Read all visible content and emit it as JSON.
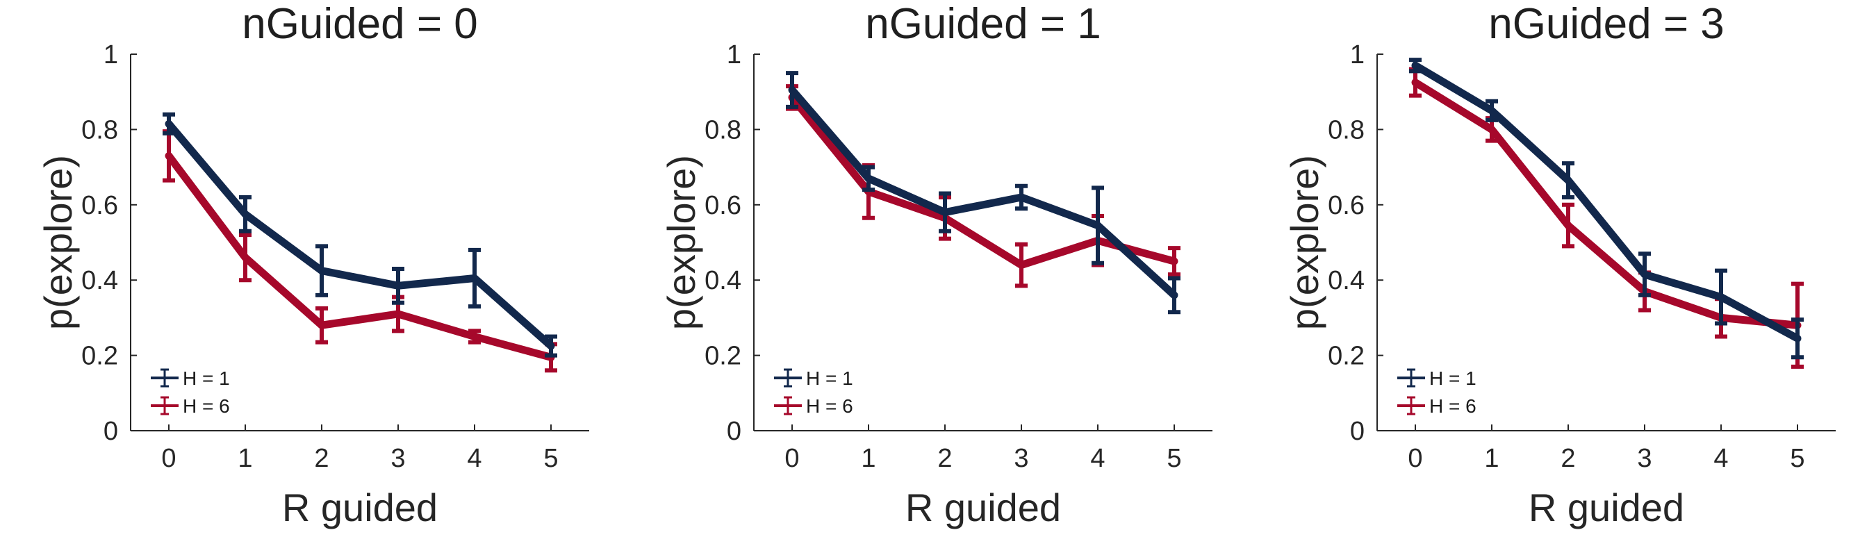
{
  "colors": {
    "h1": "#12284C",
    "h6": "#A6082B",
    "axis": "#262626"
  },
  "chart_data": [
    {
      "type": "line",
      "title": "nGuided = 0",
      "xlabel": "R guided",
      "ylabel": "p(explore)",
      "x": [
        0,
        1,
        2,
        3,
        4,
        5
      ],
      "x_ticks": [
        "0",
        "1",
        "2",
        "3",
        "4",
        "5"
      ],
      "y_ticks": [
        "0",
        "0.2",
        "0.4",
        "0.6",
        "0.8",
        "1"
      ],
      "xlim": [
        -0.5,
        5.5
      ],
      "ylim": [
        0,
        1
      ],
      "legend_position": "bottom-left",
      "series": [
        {
          "name": "H = 1",
          "color_key": "h1",
          "values": [
            0.815,
            0.575,
            0.425,
            0.385,
            0.405,
            0.225
          ],
          "err": [
            0.025,
            0.045,
            0.065,
            0.045,
            0.075,
            0.025
          ]
        },
        {
          "name": "H = 6",
          "color_key": "h6",
          "values": [
            0.73,
            0.46,
            0.28,
            0.31,
            0.25,
            0.195
          ],
          "err": [
            0.065,
            0.06,
            0.045,
            0.045,
            0.015,
            0.035
          ]
        }
      ]
    },
    {
      "type": "line",
      "title": "nGuided = 1",
      "xlabel": "R guided",
      "ylabel": "p(explore)",
      "x": [
        0,
        1,
        2,
        3,
        4,
        5
      ],
      "x_ticks": [
        "0",
        "1",
        "2",
        "3",
        "4",
        "5"
      ],
      "y_ticks": [
        "0",
        "0.2",
        "0.4",
        "0.6",
        "0.8",
        "1"
      ],
      "xlim": [
        -0.5,
        5.5
      ],
      "ylim": [
        0,
        1
      ],
      "legend_position": "bottom-left",
      "series": [
        {
          "name": "H = 1",
          "color_key": "h1",
          "values": [
            0.905,
            0.67,
            0.58,
            0.62,
            0.545,
            0.36
          ],
          "err": [
            0.045,
            0.03,
            0.05,
            0.03,
            0.1,
            0.045
          ]
        },
        {
          "name": "H = 6",
          "color_key": "h6",
          "values": [
            0.885,
            0.635,
            0.565,
            0.44,
            0.505,
            0.45
          ],
          "err": [
            0.03,
            0.07,
            0.055,
            0.055,
            0.065,
            0.035
          ]
        }
      ]
    },
    {
      "type": "line",
      "title": "nGuided = 3",
      "xlabel": "R guided",
      "ylabel": "p(explore)",
      "x": [
        0,
        1,
        2,
        3,
        4,
        5
      ],
      "x_ticks": [
        "0",
        "1",
        "2",
        "3",
        "4",
        "5"
      ],
      "y_ticks": [
        "0",
        "0.2",
        "0.4",
        "0.6",
        "0.8",
        "1"
      ],
      "xlim": [
        -0.5,
        5.5
      ],
      "ylim": [
        0,
        1
      ],
      "legend_position": "bottom-left",
      "series": [
        {
          "name": "H = 1",
          "color_key": "h1",
          "values": [
            0.97,
            0.85,
            0.665,
            0.415,
            0.355,
            0.245
          ],
          "err": [
            0.015,
            0.025,
            0.045,
            0.055,
            0.07,
            0.05
          ]
        },
        {
          "name": "H = 6",
          "color_key": "h6",
          "values": [
            0.925,
            0.8,
            0.545,
            0.37,
            0.3,
            0.28
          ],
          "err": [
            0.035,
            0.03,
            0.055,
            0.05,
            0.05,
            0.11
          ]
        }
      ]
    }
  ]
}
